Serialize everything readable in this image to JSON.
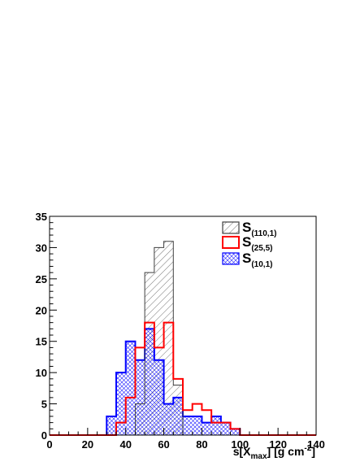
{
  "chart_data": {
    "type": "histogram",
    "xlabel": {
      "pre": "s[X",
      "sub": "max",
      "post": "] [g cm",
      "sup": "-2",
      "end": "]"
    },
    "ylabel": "",
    "xlim": [
      0,
      140
    ],
    "ylim": [
      0,
      35
    ],
    "x_ticks": [
      "0",
      "20",
      "40",
      "60",
      "80",
      "100",
      "120",
      "140"
    ],
    "y_ticks": [
      "0",
      "5",
      "10",
      "15",
      "20",
      "25",
      "30",
      "35"
    ],
    "bin_edges": [
      0,
      5,
      10,
      15,
      20,
      25,
      30,
      35,
      40,
      45,
      50,
      55,
      60,
      65,
      70,
      75,
      80,
      85,
      90,
      95,
      100,
      105,
      110,
      115,
      120,
      125,
      130,
      135,
      140
    ],
    "grid": false,
    "legend_position": "top-right",
    "series": [
      {
        "name": "S",
        "subscript": "(110,1)",
        "color": "#404040",
        "fill": "diagonal-hatch",
        "values": [
          0,
          0,
          0,
          0,
          0,
          0,
          0,
          0,
          0,
          5,
          26,
          30,
          31,
          8,
          0,
          0,
          0,
          0,
          0,
          0,
          0,
          0,
          0,
          0,
          0,
          0,
          0,
          0
        ]
      },
      {
        "name": "S",
        "subscript": "(25,5)",
        "color": "#ff0000",
        "fill": "none",
        "values": [
          0,
          0,
          0,
          0,
          0,
          0,
          0,
          2,
          6,
          14,
          18,
          14,
          18,
          9,
          4,
          5,
          4,
          2,
          2,
          1,
          0,
          0,
          0,
          0,
          0,
          0,
          0,
          0
        ]
      },
      {
        "name": "S",
        "subscript": "(10,1)",
        "color": "#0000ff",
        "fill": "cross-hatch",
        "values": [
          0,
          0,
          0,
          0,
          0,
          0,
          3,
          10,
          15,
          12,
          17,
          12,
          5,
          6,
          3,
          3,
          2,
          3,
          2,
          1,
          0,
          0,
          0,
          0,
          0,
          0,
          0,
          0
        ]
      }
    ]
  }
}
